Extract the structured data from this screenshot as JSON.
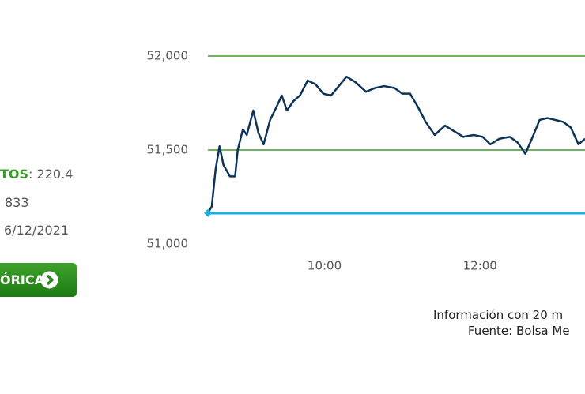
{
  "sidebar": {
    "label_key": "TOS",
    "label_value": ": 220.4",
    "line2": "833",
    "date": "6/12/2021",
    "button": "ÓRICA"
  },
  "chart_data": {
    "type": "line",
    "x": [
      510,
      513,
      516,
      519,
      522,
      527,
      531,
      533,
      537,
      540,
      545,
      549,
      553,
      558,
      563,
      567,
      571,
      576,
      581,
      587,
      593,
      599,
      605,
      611,
      617,
      624,
      632,
      639,
      646,
      654,
      660,
      666,
      672,
      678,
      685,
      693,
      700,
      707,
      715,
      722,
      728,
      735,
      743,
      749,
      755,
      760,
      766,
      772,
      778,
      784,
      790,
      796,
      801
    ],
    "series": [
      {
        "color": "#0d3358",
        "values": [
          51165,
          51200,
          51400,
          51520,
          51420,
          51360,
          51360,
          51500,
          51610,
          51580,
          51710,
          51590,
          51530,
          51660,
          51730,
          51790,
          51710,
          51760,
          51790,
          51870,
          51850,
          51800,
          51790,
          51840,
          51890,
          51860,
          51810,
          51830,
          51840,
          51830,
          51800,
          51800,
          51730,
          51650,
          51580,
          51630,
          51600,
          51570,
          51580,
          51570,
          51530,
          51560,
          51570,
          51540,
          51480,
          51560,
          51660,
          51670,
          51660,
          51650,
          51620,
          51530,
          51560
        ]
      }
    ],
    "reference_line": {
      "value": 51164,
      "color": "#1ab0e0"
    },
    "xlim": [
      510,
      801
    ],
    "ylim": [
      51000,
      52000
    ],
    "xticks": [
      {
        "value": 600,
        "label": "10:00"
      },
      {
        "value": 720,
        "label": "12:00"
      }
    ],
    "yticks": [
      {
        "value": 51000,
        "label": "51,000"
      },
      {
        "value": 51500,
        "label": "51,500"
      },
      {
        "value": 52000,
        "label": "52,000"
      }
    ],
    "grid": true,
    "grid_color": "#3d9a2e"
  },
  "footer": {
    "line1": "Información con 20 m",
    "line2": "Fuente: Bolsa Me"
  }
}
